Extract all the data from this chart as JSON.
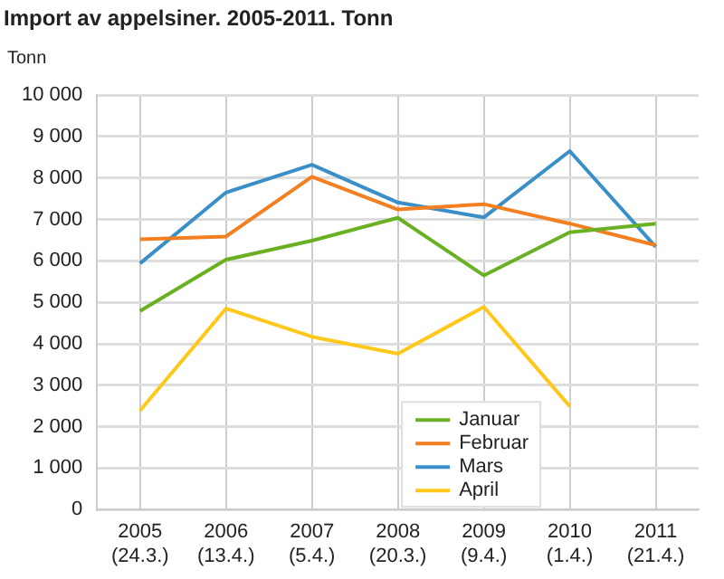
{
  "chart_data": {
    "type": "line",
    "title": "Import av appelsiner. 2005-2011. Tonn",
    "ylabel": "Tonn",
    "categories": [
      "2005\n(24.3.)",
      "2006\n(13.4.)",
      "2007\n(5.4.)",
      "2008\n(20.3.)",
      "2009\n(9.4.)",
      "2010\n(1.4.)",
      "2011\n(21.4.)"
    ],
    "series": [
      {
        "name": "Januar",
        "color": "#6ab023",
        "values": [
          4790,
          6030,
          6490,
          7040,
          5650,
          6690,
          6900
        ]
      },
      {
        "name": "Februar",
        "color": "#f47f20",
        "values": [
          6520,
          6590,
          8030,
          7240,
          7370,
          6900,
          6380
        ]
      },
      {
        "name": "Mars",
        "color": "#3a8fc8",
        "values": [
          5940,
          7650,
          8320,
          7410,
          7050,
          8650,
          6340
        ]
      },
      {
        "name": "April",
        "color": "#ffc81a",
        "values": [
          2390,
          4850,
          4170,
          3760,
          4890,
          2490,
          null
        ]
      }
    ],
    "ylim": [
      0,
      10000
    ],
    "yticks": [
      0,
      {
        "value": 1000,
        "label": "1 000"
      },
      {
        "value": 2000,
        "label": "2 000"
      },
      {
        "value": 3000,
        "label": "3 000"
      },
      {
        "value": 4000,
        "label": "4 000"
      },
      {
        "value": 5000,
        "label": "5 000"
      },
      {
        "value": 6000,
        "label": "6 000"
      },
      {
        "value": 7000,
        "label": "7 000"
      },
      {
        "value": 8000,
        "label": "8 000"
      },
      {
        "value": 9000,
        "label": "9 000"
      },
      {
        "value": 10000,
        "label": "10 000"
      }
    ],
    "grid": true,
    "legend": "bottom",
    "marker": "none",
    "line_style": "solid"
  }
}
